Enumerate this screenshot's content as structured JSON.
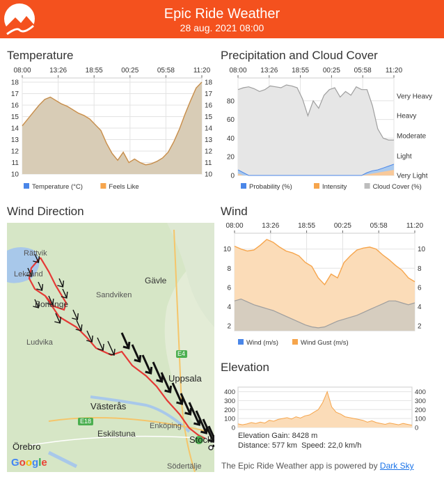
{
  "header": {
    "title": "Epic Ride Weather",
    "datetime": "28 aug. 2021 08:00",
    "color": "#f4511e"
  },
  "temperature": {
    "title": "Temperature",
    "time_labels": [
      "08:00",
      "13:26",
      "18:55",
      "00:25",
      "05:58",
      "11:20"
    ],
    "legend": [
      "Temperature (°C)",
      "Feels Like"
    ],
    "chart_data": {
      "type": "area",
      "yticks": [
        18,
        17,
        16,
        15,
        14,
        13,
        12,
        11,
        10
      ],
      "ylim": [
        10,
        18
      ],
      "series": [
        {
          "name": "Temperature (°C)",
          "color": "#4a86e8",
          "values": [
            14.2,
            14.8,
            15.4,
            16.0,
            16.5,
            16.7,
            16.4,
            16.1,
            15.9,
            15.6,
            15.3,
            15.1,
            14.8,
            14.3,
            13.8,
            12.7,
            11.8,
            11.2,
            11.9,
            11.0,
            11.3,
            11.0,
            10.8,
            10.9,
            11.1,
            11.4,
            11.9,
            12.8,
            13.9,
            15.2,
            16.4,
            17.5,
            18.0
          ]
        },
        {
          "name": "Feels Like",
          "color": "#f6a54c",
          "values": [
            14.2,
            14.8,
            15.4,
            16.0,
            16.5,
            16.7,
            16.4,
            16.1,
            15.9,
            15.6,
            15.3,
            15.1,
            14.8,
            14.3,
            13.8,
            12.7,
            11.8,
            11.2,
            11.9,
            11.0,
            11.3,
            11.0,
            10.8,
            10.9,
            11.1,
            11.4,
            11.9,
            12.8,
            13.9,
            15.2,
            16.4,
            17.5,
            18.0
          ]
        }
      ]
    }
  },
  "precipitation": {
    "title": "Precipitation and Cloud Cover",
    "time_labels": [
      "08:00",
      "13:26",
      "18:55",
      "00:25",
      "05:58",
      "11:20"
    ],
    "left_ticks": [
      "80",
      "60",
      "40",
      "20",
      "0"
    ],
    "right_labels": [
      "Very Heavy",
      "Heavy",
      "Moderate",
      "Light",
      "Very Light"
    ],
    "legend": [
      "Probability (%)",
      "Intensity",
      "Cloud Cover (%)"
    ],
    "chart_data": {
      "type": "area",
      "ylim": [
        0,
        100
      ],
      "series": [
        {
          "name": "Cloud Cover (%)",
          "color": "#bdbdbd",
          "values": [
            92,
            94,
            95,
            93,
            90,
            92,
            96,
            95,
            94,
            97,
            96,
            94,
            82,
            64,
            80,
            72,
            86,
            92,
            94,
            84,
            90,
            86,
            95,
            92,
            92,
            75,
            50,
            40,
            38,
            38
          ]
        },
        {
          "name": "Probability (%)",
          "color": "#4a86e8",
          "values": [
            6,
            3,
            0,
            0,
            0,
            0,
            0,
            0,
            0,
            0,
            0,
            0,
            0,
            0,
            0,
            0,
            0,
            0,
            0,
            0,
            0,
            0,
            0,
            0,
            3,
            5,
            6,
            8,
            10,
            12
          ]
        },
        {
          "name": "Intensity",
          "color": "#f6a54c",
          "values": [
            2,
            0,
            0,
            0,
            0,
            0,
            0,
            0,
            0,
            0,
            0,
            0,
            0,
            0,
            0,
            0,
            0,
            0,
            0,
            0,
            0,
            0,
            0,
            0,
            1,
            2,
            3,
            4,
            5,
            6
          ]
        }
      ]
    }
  },
  "wind_direction": {
    "title": "Wind Direction",
    "map_labels": {
      "rattvik": "Rättvik",
      "leksand": "Leksand",
      "borlange": "Borlänge",
      "ludvika": "Ludvika",
      "gavle": "Gävle",
      "sandviken": "Sandviken",
      "uppsala": "Uppsala",
      "vasteras": "Västerås",
      "enkoping": "Enköping",
      "eskilstuna": "Eskilstuna",
      "orebro": "Örebro",
      "stockholm": "Stockh",
      "sodertalje": "Södertälje",
      "e4": "E4",
      "e18": "E18",
      "google": "Google"
    }
  },
  "wind": {
    "title": "Wind",
    "time_labels": [
      "08:00",
      "13:26",
      "18:55",
      "00:25",
      "05:58",
      "11:20"
    ],
    "legend": [
      "Wind (m/s)",
      "Wind Gust (m/s)"
    ],
    "chart_data": {
      "type": "area",
      "yticks": [
        10,
        8,
        6,
        4,
        2
      ],
      "ylim": [
        1.5,
        11.5
      ],
      "series": [
        {
          "name": "Wind Gust (m/s)",
          "color": "#f6a54c",
          "values": [
            10.3,
            10.0,
            9.8,
            9.9,
            10.4,
            11.0,
            10.7,
            10.2,
            9.8,
            9.6,
            9.3,
            8.6,
            8.2,
            7.0,
            6.3,
            7.4,
            7.0,
            8.6,
            9.3,
            9.9,
            10.1,
            10.2,
            10.0,
            9.4,
            8.9,
            8.3,
            7.8,
            7.0,
            6.6
          ]
        },
        {
          "name": "Wind (m/s)",
          "color": "#9e9e9e",
          "values": [
            4.6,
            4.8,
            4.5,
            4.2,
            4.0,
            3.8,
            3.6,
            3.3,
            3.0,
            2.7,
            2.4,
            2.1,
            1.9,
            1.8,
            1.9,
            2.2,
            2.5,
            2.7,
            2.9,
            3.1,
            3.4,
            3.7,
            4.0,
            4.3,
            4.6,
            4.6,
            4.4,
            4.2,
            4.4
          ]
        }
      ]
    }
  },
  "elevation": {
    "title": "Elevation",
    "gain": "Elevation Gain: 8428 m",
    "distance": "Distance: 577 km",
    "speed": "Speed: 22,0 km/h",
    "chart_data": {
      "type": "area",
      "yticks": [
        400,
        300,
        200,
        100,
        0
      ],
      "ylim": [
        0,
        420
      ],
      "series": [
        {
          "name": "Elevation",
          "color": "#f6a54c",
          "values": [
            40,
            30,
            40,
            55,
            45,
            60,
            50,
            80,
            70,
            90,
            100,
            110,
            95,
            120,
            105,
            130,
            140,
            170,
            200,
            280,
            400,
            230,
            170,
            150,
            120,
            110,
            100,
            90,
            80,
            60,
            75,
            55,
            45,
            35,
            50,
            40,
            30,
            45,
            35,
            25
          ]
        }
      ]
    }
  },
  "footer": {
    "text": "The Epic Ride Weather app is powered by",
    "link": "Dark Sky"
  }
}
